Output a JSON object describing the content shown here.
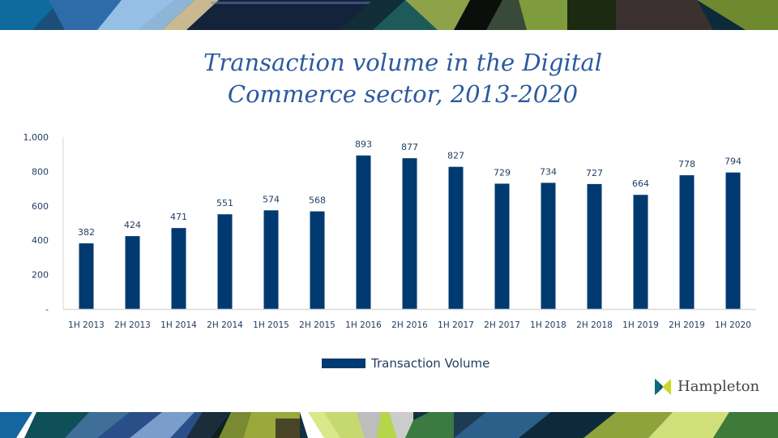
{
  "slide": {
    "title_lines": [
      "Transaction volume in the Digital",
      "Commerce sector, 2013-2020"
    ],
    "logo_text": "Hampleton",
    "logo_icon": "hampleton-bowtie-icon"
  },
  "colors": {
    "bar": "#003a70",
    "title": "#2b5aa0",
    "axis_text": "#1f3b5e",
    "axis_line": "#d9d9d9",
    "logo_left": "#0b4f6c",
    "logo_right": "#c8d92b"
  },
  "chart_data": {
    "type": "bar",
    "title": "Transaction volume in the Digital Commerce sector, 2013-2020",
    "xlabel": "",
    "ylabel": "",
    "categories": [
      "1H 2013",
      "2H 2013",
      "1H 2014",
      "2H 2014",
      "1H 2015",
      "2H 2015",
      "1H 2016",
      "2H 2016",
      "1H 2017",
      "2H 2017",
      "1H 2018",
      "2H 2018",
      "1H 2019",
      "2H 2019",
      "1H 2020"
    ],
    "series": [
      {
        "name": "Transaction Volume",
        "values": [
          382,
          424,
          471,
          551,
          574,
          568,
          893,
          877,
          827,
          729,
          734,
          727,
          664,
          778,
          794
        ]
      }
    ],
    "ylim": [
      0,
      1000
    ],
    "yticks": [
      0,
      200,
      400,
      600,
      800,
      1000
    ],
    "ytick_labels": [
      "-",
      "200",
      "400",
      "600",
      "800",
      "1,000"
    ],
    "grid": false,
    "data_labels": true,
    "legend": "bottom-center"
  }
}
